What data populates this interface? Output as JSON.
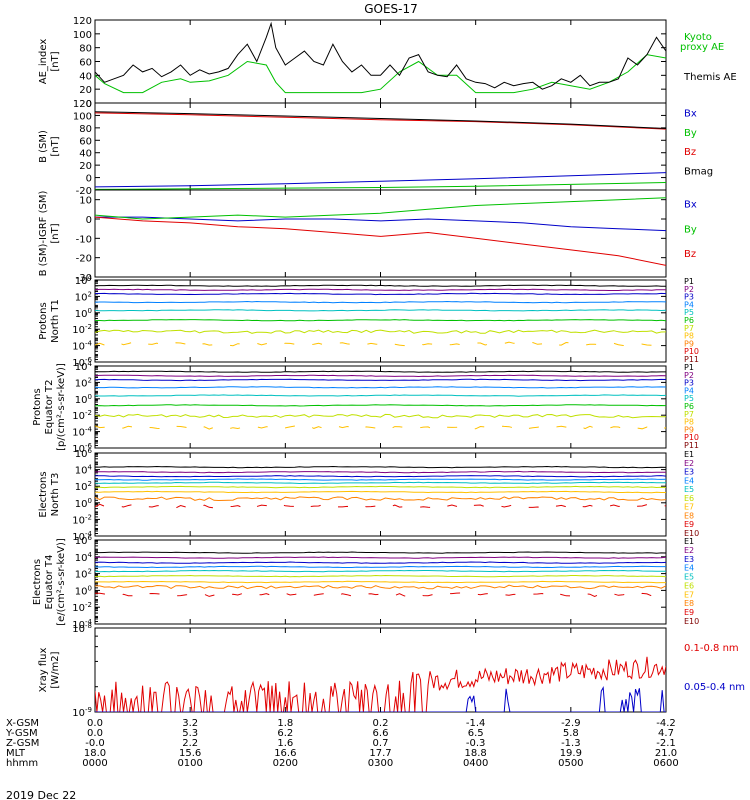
{
  "title": "GOES-17",
  "date_label": "2019 Dec 22",
  "colors": {
    "black": "#000000",
    "red": "#e00000",
    "green": "#00c000",
    "blue": "#0000c8",
    "darkred": "#800000",
    "axis": "#000000"
  },
  "chart_data": [
    {
      "id": "ae",
      "type": "line",
      "ylabel": [
        "AE_index",
        "[nT]"
      ],
      "ylim": [
        0,
        120
      ],
      "yticks": [
        "0",
        "20",
        "40",
        "60",
        "80",
        "100",
        "120"
      ],
      "legend": [
        {
          "text": "Kyoto",
          "color": "#00c000"
        },
        {
          "text": "proxy AE",
          "color": "#00c000"
        },
        {
          "text": "Themis AE",
          "color": "#000000"
        }
      ],
      "series": [
        {
          "name": "Kyoto proxy AE",
          "color": "#00c000",
          "x": [
            0,
            0.1,
            0.3,
            0.5,
            0.7,
            0.9,
            1.0,
            1.2,
            1.4,
            1.6,
            1.8,
            1.9,
            2.0,
            2.2,
            2.4,
            2.6,
            2.8,
            3.0,
            3.2,
            3.4,
            3.6,
            3.8,
            4.0,
            4.2,
            4.4,
            4.6,
            4.8,
            5.0,
            5.2,
            5.4,
            5.6,
            5.8,
            6.0
          ],
          "y": [
            40,
            28,
            15,
            15,
            30,
            35,
            30,
            32,
            40,
            60,
            55,
            30,
            15,
            15,
            15,
            15,
            15,
            20,
            45,
            60,
            40,
            40,
            15,
            15,
            15,
            20,
            30,
            25,
            20,
            30,
            45,
            70,
            65
          ]
        },
        {
          "name": "Themis AE",
          "color": "#000000",
          "x": [
            0,
            0.1,
            0.2,
            0.3,
            0.4,
            0.5,
            0.6,
            0.7,
            0.8,
            0.9,
            1.0,
            1.1,
            1.2,
            1.3,
            1.4,
            1.5,
            1.6,
            1.7,
            1.8,
            1.85,
            1.9,
            2.0,
            2.1,
            2.2,
            2.3,
            2.4,
            2.5,
            2.6,
            2.7,
            2.8,
            2.9,
            3.0,
            3.1,
            3.2,
            3.3,
            3.4,
            3.5,
            3.6,
            3.7,
            3.8,
            3.9,
            4.0,
            4.1,
            4.2,
            4.3,
            4.4,
            4.5,
            4.6,
            4.7,
            4.8,
            4.9,
            5.0,
            5.1,
            5.2,
            5.3,
            5.4,
            5.5,
            5.6,
            5.7,
            5.8,
            5.9,
            6.0
          ],
          "y": [
            45,
            30,
            35,
            40,
            55,
            45,
            50,
            38,
            45,
            55,
            40,
            48,
            42,
            45,
            50,
            70,
            85,
            60,
            95,
            115,
            80,
            55,
            65,
            75,
            60,
            55,
            85,
            60,
            45,
            55,
            40,
            40,
            55,
            40,
            65,
            70,
            45,
            40,
            38,
            55,
            35,
            30,
            28,
            22,
            30,
            25,
            28,
            30,
            20,
            25,
            35,
            30,
            40,
            25,
            30,
            30,
            35,
            65,
            55,
            70,
            95,
            75
          ]
        }
      ]
    },
    {
      "id": "bsm",
      "type": "line",
      "ylabel": [
        "B (SM)",
        "[nT]"
      ],
      "ylim": [
        -20,
        120
      ],
      "yticks": [
        "-20",
        "0",
        "20",
        "40",
        "60",
        "80",
        "100",
        "120"
      ],
      "legend": [
        {
          "text": "Bx",
          "color": "#0000c8"
        },
        {
          "text": "By",
          "color": "#00c000"
        },
        {
          "text": "Bz",
          "color": "#e00000"
        },
        {
          "text": "Bmag",
          "color": "#000000"
        }
      ],
      "series": [
        {
          "name": "Bx",
          "color": "#0000c8",
          "x": [
            0,
            1,
            2,
            3,
            4,
            5,
            6
          ],
          "y": [
            -15,
            -13,
            -10,
            -6,
            -2,
            3,
            8
          ]
        },
        {
          "name": "By",
          "color": "#00c000",
          "x": [
            0,
            1,
            2,
            3,
            4,
            5,
            6
          ],
          "y": [
            -19,
            -18,
            -17,
            -16,
            -14,
            -11,
            -8
          ]
        },
        {
          "name": "Bz",
          "color": "#e00000",
          "x": [
            0,
            1,
            2,
            3,
            4,
            5,
            6
          ],
          "y": [
            104,
            101,
            97,
            93,
            90,
            85,
            78
          ]
        },
        {
          "name": "Bmag",
          "color": "#000000",
          "x": [
            0,
            1,
            2,
            3,
            4,
            5,
            6
          ],
          "y": [
            106,
            103,
            99,
            95,
            91,
            86,
            79
          ]
        }
      ]
    },
    {
      "id": "bres",
      "type": "line",
      "ylabel": [
        "B (SM)-IGRF (SM)",
        "[nT]"
      ],
      "ylim": [
        -30,
        15
      ],
      "yticks": [
        "-30",
        "-20",
        "-10",
        "0",
        "10"
      ],
      "legend": [
        {
          "text": "Bx",
          "color": "#0000c8"
        },
        {
          "text": "By",
          "color": "#00c000"
        },
        {
          "text": "Bz",
          "color": "#e00000"
        }
      ],
      "series": [
        {
          "name": "Bx",
          "color": "#0000c8",
          "x": [
            0,
            0.5,
            1,
            1.5,
            2,
            2.5,
            3,
            3.5,
            4,
            4.5,
            5,
            5.5,
            6
          ],
          "y": [
            1,
            1,
            0,
            -1,
            0,
            0,
            -1,
            0,
            -1,
            -2,
            -4,
            -5,
            -6
          ]
        },
        {
          "name": "By",
          "color": "#00c000",
          "x": [
            0,
            0.5,
            1,
            1.5,
            2,
            2.5,
            3,
            3.5,
            4,
            4.5,
            5,
            5.5,
            6
          ],
          "y": [
            2,
            0,
            1,
            2,
            1,
            2,
            3,
            5,
            7,
            8,
            9,
            10,
            11
          ]
        },
        {
          "name": "Bz",
          "color": "#e00000",
          "x": [
            0,
            0.5,
            1,
            1.5,
            2,
            2.5,
            3,
            3.5,
            4,
            4.5,
            5,
            5.5,
            6
          ],
          "y": [
            1,
            -1,
            -2,
            -4,
            -5,
            -7,
            -9,
            -7,
            -10,
            -13,
            -16,
            -19,
            -24
          ]
        }
      ]
    },
    {
      "id": "protons_north",
      "type": "line",
      "ylabel": [
        "Protons",
        "North T1"
      ],
      "ylim_log": [
        -6,
        4
      ],
      "yticks": [
        "10^-6",
        "10^-4",
        "10^-2",
        "10^0",
        "10^2",
        "10^4"
      ],
      "legend": [
        {
          "text": "P1",
          "color": "#000000"
        },
        {
          "text": "P2",
          "color": "#800080"
        },
        {
          "text": "P3",
          "color": "#0000c8"
        },
        {
          "text": "P4",
          "color": "#0080ff"
        },
        {
          "text": "P5",
          "color": "#00c0c0"
        },
        {
          "text": "P6",
          "color": "#00c000"
        },
        {
          "text": "P7",
          "color": "#c0e000"
        },
        {
          "text": "P8",
          "color": "#ffc000"
        },
        {
          "text": "P9",
          "color": "#ff8000"
        },
        {
          "text": "P10",
          "color": "#e00000"
        },
        {
          "text": "P11",
          "color": "#800000"
        }
      ],
      "series": [
        {
          "name": "P1",
          "color": "#000000",
          "y": 3.3
        },
        {
          "name": "P2",
          "color": "#800080",
          "y": 2.8
        },
        {
          "name": "P3",
          "color": "#0000c8",
          "y": 2.3
        },
        {
          "name": "P4",
          "color": "#0080ff",
          "y": 1.3
        },
        {
          "name": "P5",
          "color": "#00c0c0",
          "y": 0.3
        },
        {
          "name": "P6",
          "color": "#00c000",
          "y": -0.9
        },
        {
          "name": "P7",
          "color": "#c0e000",
          "y": -2.3
        },
        {
          "name": "P8",
          "color": "#ffc000",
          "y": -3.8
        }
      ]
    },
    {
      "id": "protons_equator",
      "type": "line",
      "ylabel": [
        "Protons",
        "Equator T2",
        "[p/(cm²-s-sr-keV)]"
      ],
      "ylim_log": [
        -6,
        4
      ],
      "yticks": [
        "10^-6",
        "10^-4",
        "10^-2",
        "10^0",
        "10^2",
        "10^4"
      ],
      "legend": [
        {
          "text": "P1",
          "color": "#000000"
        },
        {
          "text": "P2",
          "color": "#800080"
        },
        {
          "text": "P3",
          "color": "#0000c8"
        },
        {
          "text": "P4",
          "color": "#0080ff"
        },
        {
          "text": "P5",
          "color": "#00c0c0"
        },
        {
          "text": "P6",
          "color": "#00c000"
        },
        {
          "text": "P7",
          "color": "#c0e000"
        },
        {
          "text": "P8",
          "color": "#ffc000"
        },
        {
          "text": "P9",
          "color": "#ff8000"
        },
        {
          "text": "P10",
          "color": "#e00000"
        },
        {
          "text": "P11",
          "color": "#800000"
        }
      ],
      "series": [
        {
          "name": "P1",
          "color": "#000000",
          "y": 3.3
        },
        {
          "name": "P2",
          "color": "#800080",
          "y": 2.8
        },
        {
          "name": "P3",
          "color": "#0000c8",
          "y": 2.3
        },
        {
          "name": "P4",
          "color": "#0080ff",
          "y": 1.4
        },
        {
          "name": "P5",
          "color": "#00c0c0",
          "y": 0.4
        },
        {
          "name": "P6",
          "color": "#00c000",
          "y": -0.8
        },
        {
          "name": "P7",
          "color": "#c0e000",
          "y": -2.1
        },
        {
          "name": "P8",
          "color": "#ffc000",
          "y": -3.5
        }
      ]
    },
    {
      "id": "electrons_north",
      "type": "line",
      "ylabel": [
        "Electrons",
        "North T3"
      ],
      "ylim_log": [
        -4,
        6
      ],
      "yticks": [
        "10^-4",
        "10^-2",
        "10^0",
        "10^2",
        "10^4",
        "10^6"
      ],
      "legend": [
        {
          "text": "E1",
          "color": "#000000"
        },
        {
          "text": "E2",
          "color": "#800080"
        },
        {
          "text": "E3",
          "color": "#0000c8"
        },
        {
          "text": "E4",
          "color": "#0080ff"
        },
        {
          "text": "E5",
          "color": "#00c0c0"
        },
        {
          "text": "E6",
          "color": "#c0e000"
        },
        {
          "text": "E7",
          "color": "#ffc000"
        },
        {
          "text": "E8",
          "color": "#ff8000"
        },
        {
          "text": "E9",
          "color": "#e00000"
        },
        {
          "text": "E10",
          "color": "#800000"
        }
      ],
      "series": [
        {
          "name": "E1",
          "color": "#000000",
          "y": 4.3
        },
        {
          "name": "E2",
          "color": "#800080",
          "y": 3.7
        },
        {
          "name": "E3",
          "color": "#0000c8",
          "y": 3.2
        },
        {
          "name": "E4",
          "color": "#0080ff",
          "y": 2.8
        },
        {
          "name": "E5",
          "color": "#00c0c0",
          "y": 2.4
        },
        {
          "name": "E6",
          "color": "#c0e000",
          "y": 1.9
        },
        {
          "name": "E7",
          "color": "#ffc000",
          "y": 1.3
        },
        {
          "name": "E8",
          "color": "#ff8000",
          "y": 0.5
        },
        {
          "name": "E9",
          "color": "#e00000",
          "y": -0.4
        }
      ]
    },
    {
      "id": "electrons_equator",
      "type": "line",
      "ylabel": [
        "Electrons",
        "Equator T4",
        "[e/(cm²-s-sr-keV)]"
      ],
      "ylim_log": [
        -4,
        6
      ],
      "yticks": [
        "10^-4",
        "10^-2",
        "10^0",
        "10^2",
        "10^4",
        "10^6"
      ],
      "legend": [
        {
          "text": "E1",
          "color": "#000000"
        },
        {
          "text": "E2",
          "color": "#800080"
        },
        {
          "text": "E3",
          "color": "#0000c8"
        },
        {
          "text": "E4",
          "color": "#0080ff"
        },
        {
          "text": "E5",
          "color": "#00c0c0"
        },
        {
          "text": "E6",
          "color": "#c0e000"
        },
        {
          "text": "E7",
          "color": "#ffc000"
        },
        {
          "text": "E8",
          "color": "#ff8000"
        },
        {
          "text": "E9",
          "color": "#e00000"
        },
        {
          "text": "E10",
          "color": "#800000"
        }
      ],
      "series": [
        {
          "name": "E1",
          "color": "#000000",
          "y": 4.5
        },
        {
          "name": "E2",
          "color": "#800080",
          "y": 3.9
        },
        {
          "name": "E3",
          "color": "#0000c8",
          "y": 3.3
        },
        {
          "name": "E4",
          "color": "#0080ff",
          "y": 2.8
        },
        {
          "name": "E5",
          "color": "#00c0c0",
          "y": 2.3
        },
        {
          "name": "E6",
          "color": "#c0e000",
          "y": 1.7
        },
        {
          "name": "E7",
          "color": "#ffc000",
          "y": 1.0
        },
        {
          "name": "E8",
          "color": "#ff8000",
          "y": 0.4
        },
        {
          "name": "E9",
          "color": "#e00000",
          "y": -0.5
        }
      ]
    },
    {
      "id": "xray",
      "type": "line",
      "ylabel": [
        "Xray flux",
        "[W/m2]"
      ],
      "ylim_log": [
        -9,
        -8
      ],
      "yticks": [
        "10^-9",
        "10^-8"
      ],
      "legend": [
        {
          "text": "0.1-0.8 nm",
          "color": "#e00000"
        },
        {
          "text": "0.05-0.4 nm",
          "color": "#0000c8"
        }
      ],
      "series": [
        {
          "name": "0.1-0.8 nm",
          "color": "#e00000"
        },
        {
          "name": "0.05-0.4 nm",
          "color": "#0000c8"
        }
      ]
    }
  ],
  "xaxis": {
    "rows": [
      {
        "label": "X-GSM",
        "values": [
          "0.0",
          "3.2",
          "1.8",
          "0.2",
          "-1.4",
          "-2.9",
          "-4.2"
        ]
      },
      {
        "label": "Y-GSM",
        "values": [
          "0.0",
          "5.3",
          "6.2",
          "6.6",
          "6.5",
          "5.8",
          "4.7"
        ]
      },
      {
        "label": "Z-GSM",
        "values": [
          "-0.0",
          "2.2",
          "1.6",
          "0.7",
          "-0.3",
          "-1.3",
          "-2.1"
        ]
      },
      {
        "label": "MLT",
        "values": [
          "18.0",
          "15.6",
          "16.6",
          "17.7",
          "18.8",
          "19.9",
          "21.0"
        ]
      },
      {
        "label": "hhmm",
        "values": [
          "0000",
          "0100",
          "0200",
          "0300",
          "0400",
          "0500",
          "0600"
        ]
      }
    ]
  }
}
